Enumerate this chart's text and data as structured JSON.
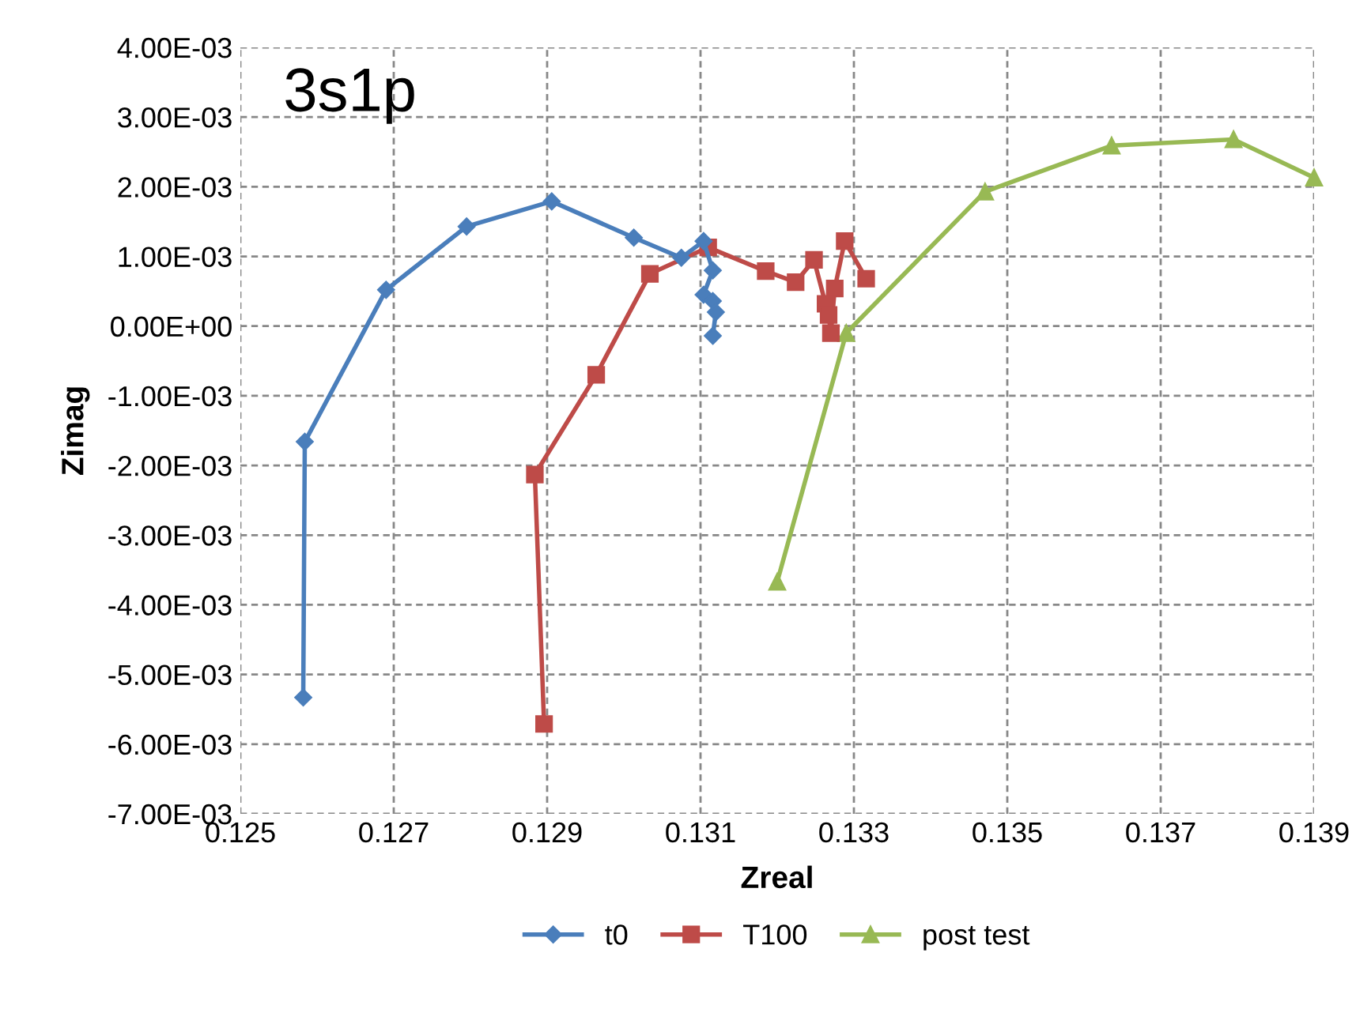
{
  "chart_data": {
    "type": "line",
    "xlabel": "Zreal",
    "ylabel": "Zimag",
    "annotations": [
      "3s1p"
    ],
    "xlim": [
      0.125,
      0.139
    ],
    "xticks": [
      0.125,
      0.127,
      0.129,
      0.131,
      0.133,
      0.135,
      0.137,
      0.139
    ],
    "ylim": [
      -0.007,
      0.004
    ],
    "yticks": [
      {
        "value": -0.007,
        "label": "-7.00E-03"
      },
      {
        "value": -0.006,
        "label": "-6.00E-03"
      },
      {
        "value": -0.005,
        "label": "-5.00E-03"
      },
      {
        "value": -0.004,
        "label": "-4.00E-03"
      },
      {
        "value": -0.003,
        "label": "-3.00E-03"
      },
      {
        "value": -0.002,
        "label": "-2.00E-03"
      },
      {
        "value": -0.001,
        "label": "-1.00E-03"
      },
      {
        "value": 0,
        "label": "0.00E+00"
      },
      {
        "value": 0.001,
        "label": "1.00E-03"
      },
      {
        "value": 0.002,
        "label": "2.00E-03"
      },
      {
        "value": 0.003,
        "label": "3.00E-03"
      },
      {
        "value": 0.004,
        "label": "4.00E-03"
      }
    ],
    "grid": true,
    "legend": "bottom",
    "series": [
      {
        "name": "t0",
        "color": "#4a7ebb",
        "marker": "diamond",
        "x": [
          0.12582,
          0.12584,
          0.1269,
          0.12795,
          0.12906,
          0.13013,
          0.13075,
          0.13104,
          0.13116,
          0.13104,
          0.13116,
          0.1312,
          0.13116
        ],
        "values": [
          -0.00533,
          -0.00166,
          0.00052,
          0.00143,
          0.00179,
          0.00127,
          0.00098,
          0.00122,
          0.0008,
          0.00045,
          0.00036,
          0.0002,
          -0.00014
        ]
      },
      {
        "name": "T100",
        "color": "#be4b48",
        "marker": "square",
        "x": [
          0.12896,
          0.12884,
          0.12964,
          0.13034,
          0.1311,
          0.13185,
          0.13224,
          0.13248,
          0.13263,
          0.13267,
          0.1327,
          0.13275,
          0.13288,
          0.13316
        ],
        "values": [
          -0.00571,
          -0.00213,
          -0.0007,
          0.00075,
          0.00113,
          0.00079,
          0.00063,
          0.00095,
          0.00032,
          0.00016,
          -0.0001,
          0.00054,
          0.00122,
          0.00068
        ]
      },
      {
        "name": "post test",
        "color": "#98b954",
        "marker": "triangle",
        "x": [
          0.132,
          0.1329,
          0.13471,
          0.13636,
          0.13795,
          0.139
        ],
        "values": [
          -0.00367,
          -0.0001,
          0.00193,
          0.00259,
          0.00268,
          0.00213
        ]
      }
    ]
  }
}
